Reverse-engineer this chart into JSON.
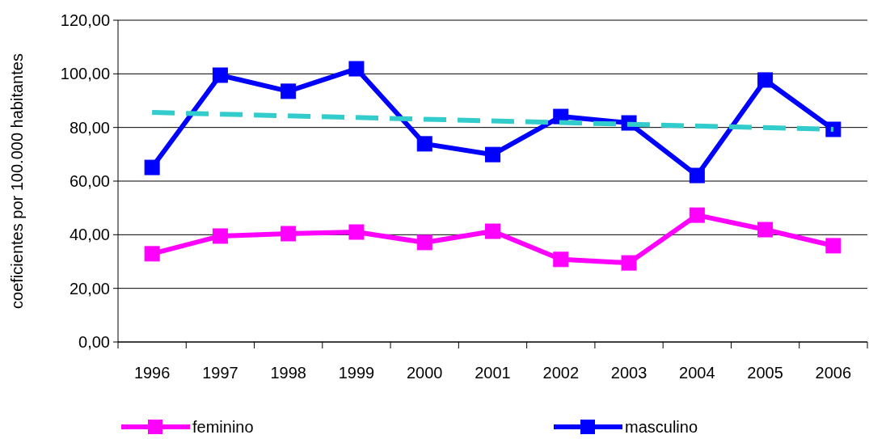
{
  "chart_data": {
    "type": "line",
    "ylabel": "coeficientes por 100.000 habitantes",
    "categories": [
      "1996",
      "1997",
      "1998",
      "1999",
      "2000",
      "2001",
      "2002",
      "2003",
      "2004",
      "2005",
      "2006"
    ],
    "series": [
      {
        "name": "feminino",
        "color": "#ff00ff",
        "values": [
          32.9,
          39.5,
          40.4,
          41.0,
          37.1,
          41.3,
          30.8,
          29.5,
          47.3,
          41.9,
          35.9
        ]
      },
      {
        "name": "masculino",
        "color": "#0000ff",
        "values": [
          65.1,
          99.5,
          93.5,
          101.9,
          73.9,
          69.9,
          84.1,
          81.7,
          62.1,
          97.7,
          79.3
        ]
      },
      {
        "type": "line",
        "color": "#33cccc",
        "values": [
          85.6,
          null,
          null,
          null,
          null,
          null,
          null,
          null,
          null,
          null,
          79.3
        ],
        "marker": "none",
        "line_style": "dashed"
      }
    ],
    "ylim": [
      0,
      120
    ],
    "yticks": [
      {
        "value": 0,
        "label": "0,00"
      },
      {
        "value": 20,
        "label": "20,00"
      },
      {
        "value": 40,
        "label": "40,00"
      },
      {
        "value": 60,
        "label": "60,00"
      },
      {
        "value": 80,
        "label": "80,00"
      },
      {
        "value": 100,
        "label": "100,00"
      },
      {
        "value": 120,
        "label": "120,00"
      }
    ],
    "grid": "y",
    "legend": "bottom",
    "marker": "square",
    "line_style": "solid"
  }
}
